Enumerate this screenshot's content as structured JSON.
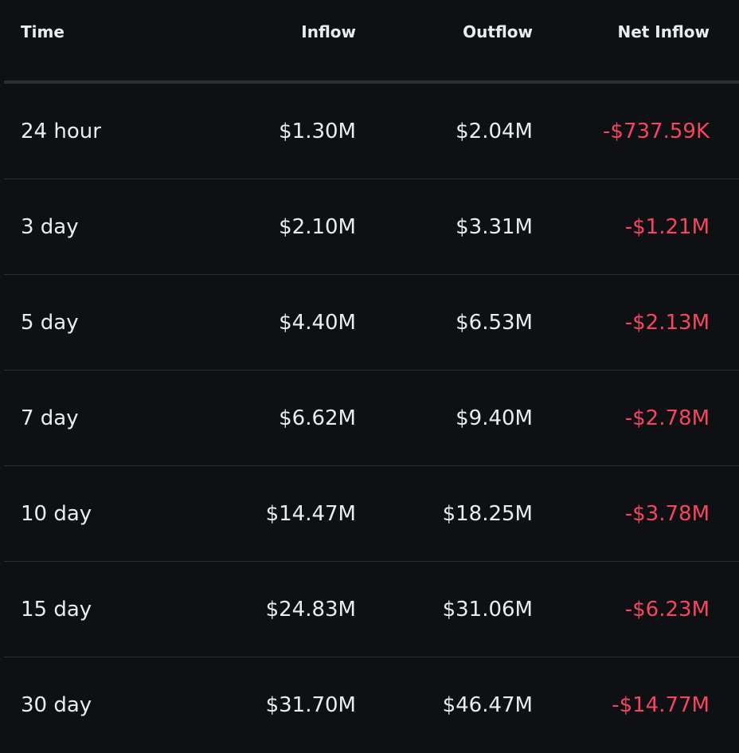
{
  "table": {
    "headers": {
      "time": "Time",
      "inflow": "Inflow",
      "outflow": "Outflow",
      "net_inflow": "Net Inflow"
    },
    "rows": [
      {
        "time": "24 hour",
        "inflow": "$1.30M",
        "outflow": "$2.04M",
        "net_inflow": "-$737.59K"
      },
      {
        "time": "3 day",
        "inflow": "$2.10M",
        "outflow": "$3.31M",
        "net_inflow": "-$1.21M"
      },
      {
        "time": "5 day",
        "inflow": "$4.40M",
        "outflow": "$6.53M",
        "net_inflow": "-$2.13M"
      },
      {
        "time": "7 day",
        "inflow": "$6.62M",
        "outflow": "$9.40M",
        "net_inflow": "-$2.78M"
      },
      {
        "time": "10 day",
        "inflow": "$14.47M",
        "outflow": "$18.25M",
        "net_inflow": "-$3.78M"
      },
      {
        "time": "15 day",
        "inflow": "$24.83M",
        "outflow": "$31.06M",
        "net_inflow": "-$6.23M"
      },
      {
        "time": "30 day",
        "inflow": "$31.70M",
        "outflow": "$46.47M",
        "net_inflow": "-$14.77M"
      }
    ]
  },
  "colors": {
    "background": "#0e1014",
    "text": "#eaecef",
    "negative": "#f6465d",
    "divider": "#2b2f36"
  }
}
